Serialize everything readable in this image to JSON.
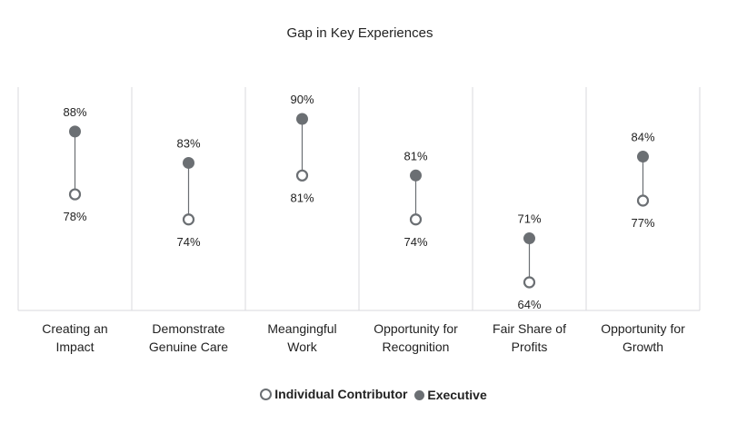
{
  "chart_data": {
    "type": "dumbbell",
    "title": "Gap in Key Experiences",
    "categories": [
      [
        "Creating an",
        "Impact"
      ],
      [
        "Demonstrate",
        "Genuine Care"
      ],
      [
        "Meangingful",
        "Work"
      ],
      [
        "Opportunity for",
        "Recognition"
      ],
      [
        "Fair Share of",
        "Profits"
      ],
      [
        "Opportunity for",
        "Growth"
      ]
    ],
    "series": [
      {
        "name": "Individual Contributor",
        "marker": "open-circle",
        "values": [
          78,
          74,
          81,
          74,
          64,
          77
        ]
      },
      {
        "name": "Executive",
        "marker": "filled-circle",
        "values": [
          88,
          83,
          90,
          81,
          71,
          84
        ]
      }
    ],
    "value_suffix": "%",
    "ylim": [
      55,
      98
    ],
    "grid": "vertical-separators",
    "legend_position": "bottom-center",
    "colors": {
      "marker": "#6b6f73",
      "line": "#6b6f73",
      "grid": "#d8dade"
    }
  },
  "legend": {
    "ic_label": "Individual Contributor",
    "exec_label": "Executive"
  }
}
